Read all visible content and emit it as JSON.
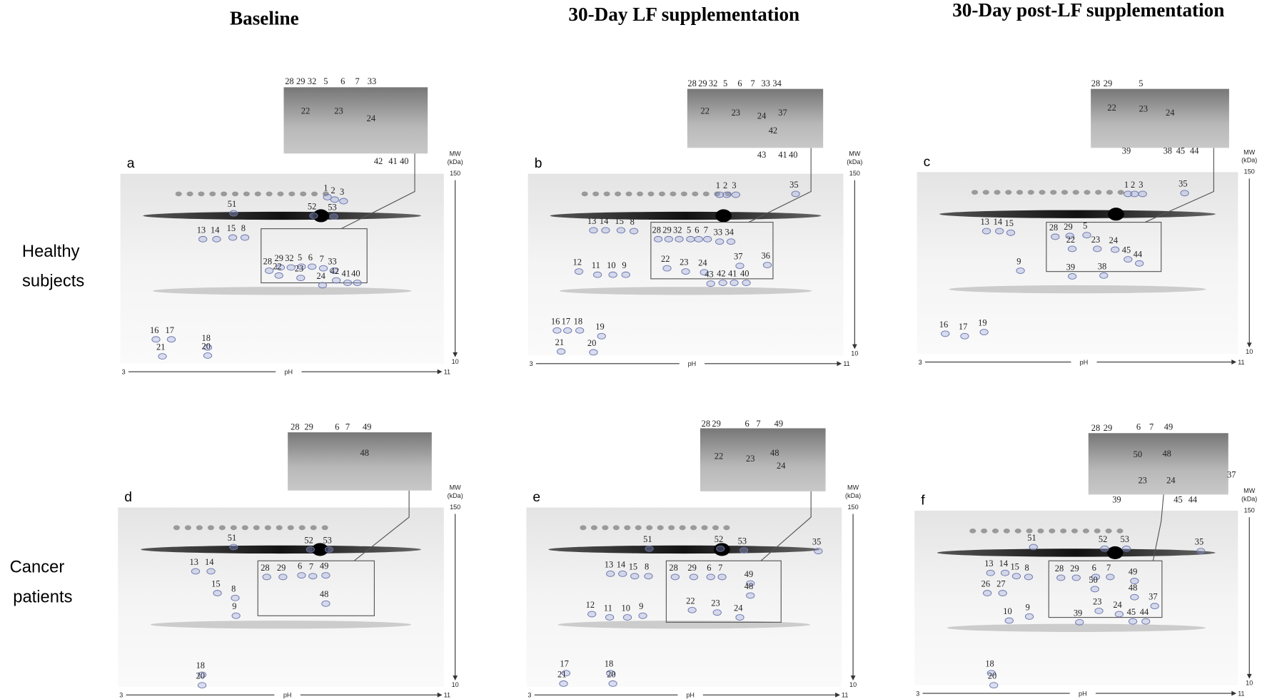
{
  "column_titles": [
    "Baseline",
    "30-Day LF supplementation",
    "30-Day post-LF supplementation"
  ],
  "row_labels": [
    [
      "Healthy",
      "subjects"
    ],
    [
      "Cancer",
      "patients"
    ]
  ],
  "axes": {
    "mw": "MW",
    "kda": "(kDa)",
    "mw_top": "150",
    "mw_bottom": "10",
    "ph_min": "3",
    "ph": "pH",
    "ph_max": "11"
  },
  "panels": [
    {
      "letter": "a",
      "gel_labels": [
        "1",
        "2",
        "3",
        "51",
        "52",
        "53",
        "13",
        "14",
        "15",
        "8",
        "28",
        "29",
        "32",
        "5",
        "6",
        "7",
        "33",
        "22",
        "23",
        "24",
        "42",
        "41",
        "40",
        "16",
        "17",
        "18",
        "21",
        "20"
      ],
      "inset_labels": [
        "28",
        "29",
        "32",
        "5",
        "6",
        "7",
        "33",
        "22",
        "23",
        "24",
        "42",
        "41",
        "40"
      ]
    },
    {
      "letter": "b",
      "gel_labels": [
        "1",
        "2",
        "3",
        "35",
        "13",
        "14",
        "15",
        "8",
        "28",
        "29",
        "32",
        "5",
        "6",
        "7",
        "33",
        "34",
        "37",
        "36",
        "12",
        "11",
        "10",
        "9",
        "22",
        "23",
        "24",
        "43",
        "42",
        "41",
        "40",
        "16",
        "17",
        "18",
        "19",
        "21",
        "20"
      ],
      "inset_labels": [
        "28",
        "29",
        "32",
        "5",
        "6",
        "7",
        "33",
        "34",
        "22",
        "23",
        "37",
        "24",
        "42",
        "43",
        "41",
        "40"
      ]
    },
    {
      "letter": "c",
      "gel_labels": [
        "1",
        "2",
        "3",
        "35",
        "13",
        "14",
        "15",
        "28",
        "29",
        "5",
        "9",
        "22",
        "23",
        "24",
        "45",
        "44",
        "39",
        "38",
        "16",
        "17",
        "19"
      ],
      "inset_labels": [
        "28",
        "29",
        "5",
        "22",
        "23",
        "24",
        "39",
        "38",
        "45",
        "44"
      ]
    },
    {
      "letter": "d",
      "gel_labels": [
        "51",
        "52",
        "53",
        "13",
        "14",
        "15",
        "8",
        "28",
        "29",
        "6",
        "7",
        "49",
        "48",
        "9",
        "18",
        "20"
      ],
      "inset_labels": [
        "28",
        "29",
        "6",
        "7",
        "49",
        "48"
      ]
    },
    {
      "letter": "e",
      "gel_labels": [
        "51",
        "52",
        "53",
        "35",
        "13",
        "14",
        "15",
        "8",
        "28",
        "29",
        "6",
        "7",
        "49",
        "48",
        "22",
        "23",
        "24",
        "12",
        "11",
        "10",
        "9",
        "17",
        "18",
        "21",
        "20"
      ],
      "inset_labels": [
        "28",
        "29",
        "6",
        "7",
        "49",
        "22",
        "23",
        "48",
        "24"
      ]
    },
    {
      "letter": "f",
      "gel_labels": [
        "51",
        "52",
        "53",
        "35",
        "13",
        "14",
        "15",
        "8",
        "28",
        "29",
        "6",
        "7",
        "49",
        "50",
        "48",
        "37",
        "26",
        "27",
        "23",
        "24",
        "45",
        "44",
        "10",
        "9",
        "39",
        "18",
        "20"
      ],
      "inset_labels": [
        "28",
        "29",
        "6",
        "7",
        "49",
        "50",
        "48",
        "23",
        "24",
        "37",
        "39",
        "45",
        "44"
      ]
    }
  ]
}
